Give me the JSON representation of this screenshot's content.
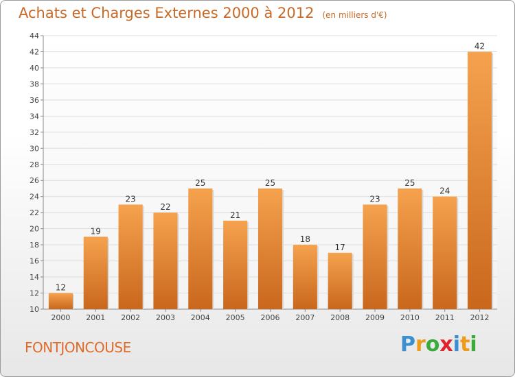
{
  "header": {
    "title": "Achats et Charges Externes 2000 à 2012",
    "subtitle": "(en milliers d'€)"
  },
  "footer": {
    "town": "FONTJONCOUSE",
    "logo": [
      "P",
      "r",
      "o",
      "x",
      "i",
      "t",
      "i"
    ],
    "logo_colors": [
      "#3a8fd0",
      "#f09a1a",
      "#3aaa3a",
      "#e0222a",
      "#3a8fd0",
      "#f09a1a",
      "#3aaa3a"
    ]
  },
  "colors": {
    "bar_light": "#f5a24e",
    "bar_dark": "#c9671d",
    "accent": "#c86a26"
  },
  "chart_data": {
    "type": "bar",
    "categories": [
      "2000",
      "2001",
      "2002",
      "2003",
      "2004",
      "2005",
      "2006",
      "2007",
      "2008",
      "2009",
      "2010",
      "2011",
      "2012"
    ],
    "values": [
      12,
      19,
      23,
      22,
      25,
      21,
      25,
      18,
      17,
      23,
      25,
      24,
      42
    ],
    "ylim": [
      10,
      44
    ],
    "yticks": [
      10,
      12,
      14,
      16,
      18,
      20,
      22,
      24,
      26,
      28,
      30,
      32,
      34,
      36,
      38,
      40,
      42,
      44
    ],
    "grid": true
  }
}
